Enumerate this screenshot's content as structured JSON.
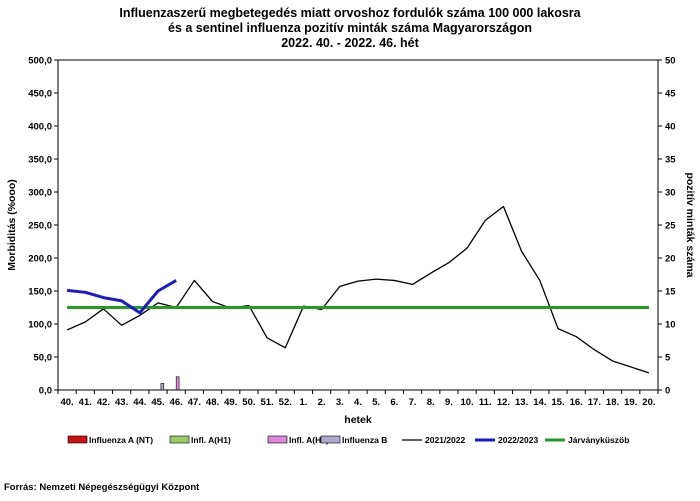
{
  "chart_data": {
    "type": "line",
    "title_lines": [
      "Influenzaszerű megbetegedés miatt orvoshoz fordulók száma 100 000 lakosra",
      "és a sentinel influenza pozitív minták száma Magyarországon",
      "2022. 40. - 2022. 46. hét"
    ],
    "xlabel": "hetek",
    "ylabel_left": "Morbiditás (%ooo)",
    "ylabel_right": "pozitív minták száma",
    "ylim_left": [
      0,
      500
    ],
    "ylim_right": [
      0,
      50
    ],
    "yticks_left": [
      "0,0",
      "50,0",
      "100,0",
      "150,0",
      "200,0",
      "250,0",
      "300,0",
      "350,0",
      "400,0",
      "450,0",
      "500,0"
    ],
    "yticks_right": [
      "0",
      "5",
      "10",
      "15",
      "20",
      "25",
      "30",
      "35",
      "40",
      "45",
      "50"
    ],
    "categories": [
      "40.",
      "41.",
      "42.",
      "43.",
      "44.",
      "45.",
      "46.",
      "47.",
      "48.",
      "49.",
      "50.",
      "51.",
      "52.",
      "1.",
      "2.",
      "3.",
      "4.",
      "5.",
      "6.",
      "7.",
      "8.",
      "9.",
      "10.",
      "11.",
      "12.",
      "13.",
      "14.",
      "15.",
      "16.",
      "17.",
      "18.",
      "19.",
      "20."
    ],
    "line_series": [
      {
        "name": "2021/2022",
        "color": "#000000",
        "values": [
          91,
          103,
          123,
          98,
          113,
          132,
          125,
          166,
          134,
          124,
          128,
          79,
          64,
          127,
          122,
          157,
          165,
          168,
          166,
          160,
          177,
          193,
          215,
          257,
          278,
          210,
          166,
          93,
          81,
          61,
          44,
          35,
          26
        ]
      },
      {
        "name": "2022/2023",
        "color": "#1a1acc",
        "values": [
          151,
          148,
          140,
          135,
          117,
          150,
          166
        ]
      },
      {
        "name": "Járványküszöb",
        "color": "#1f9e1f",
        "values": [
          125,
          125,
          125,
          125,
          125,
          125,
          125,
          125,
          125,
          125,
          125,
          125,
          125,
          125,
          125,
          125,
          125,
          125,
          125,
          125,
          125,
          125,
          125,
          125,
          125,
          125,
          125,
          125,
          125,
          125,
          125,
          125,
          125
        ]
      }
    ],
    "bar_series": [
      {
        "name": "Influenza A (NT)",
        "color": "#cc1111",
        "values": [
          0,
          0,
          0,
          0,
          0,
          0,
          0
        ]
      },
      {
        "name": "Infl. A(H1)",
        "color": "#99cc66",
        "values": [
          0,
          0,
          0,
          0,
          0,
          0,
          0
        ]
      },
      {
        "name": "Infl. A(H3)",
        "color": "#dd88dd",
        "values": [
          0,
          0,
          0,
          0,
          0,
          0,
          2
        ]
      },
      {
        "name": "Influenza B",
        "color": "#b0a8cc",
        "values": [
          0,
          0,
          0,
          0,
          0,
          1,
          0
        ]
      }
    ],
    "legend_position": "bottom",
    "grid": false
  },
  "source": "Forrás: Nemzeti Népegészségügyi Központ"
}
